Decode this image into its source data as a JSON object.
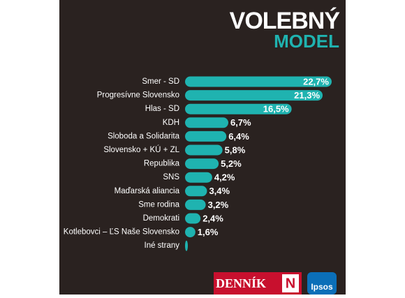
{
  "chart_data": {
    "type": "bar",
    "orientation": "horizontal",
    "title": "VOLEBNÝ",
    "subtitle": "MODEL",
    "categories": [
      "Smer - SD",
      "Progresívne Slovensko",
      "Hlas - SD",
      "KDH",
      "Sloboda a Solidarita",
      "Slovensko + KÚ + ZL",
      "Republika",
      "SNS",
      "Maďarská aliancia",
      "Sme rodina",
      "Demokrati",
      "Kotlebovci – ĽS Naše Slovensko",
      "Iné strany"
    ],
    "values": [
      22.7,
      21.3,
      16.5,
      6.7,
      6.4,
      5.8,
      5.2,
      4.2,
      3.4,
      3.2,
      2.4,
      1.6,
      0.3
    ],
    "value_labels": [
      "22,7%",
      "21,3%",
      "16,5%",
      "6,7%",
      "6,4%",
      "5,8%",
      "5,2%",
      "4,2%",
      "3,4%",
      "3,2%",
      "2,4%",
      "1,6%",
      null
    ],
    "color": "#1fb3b0"
  },
  "logos": {
    "dennik": "DENNÍK",
    "n": "N",
    "ipsos": "Ipsos"
  }
}
